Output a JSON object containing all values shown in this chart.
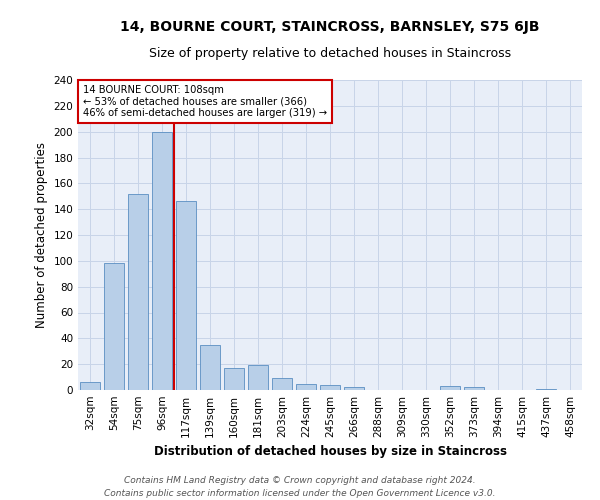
{
  "title": "14, BOURNE COURT, STAINCROSS, BARNSLEY, S75 6JB",
  "subtitle": "Size of property relative to detached houses in Staincross",
  "xlabel": "Distribution of detached houses by size in Staincross",
  "ylabel": "Number of detached properties",
  "categories": [
    "32sqm",
    "54sqm",
    "75sqm",
    "96sqm",
    "117sqm",
    "139sqm",
    "160sqm",
    "181sqm",
    "203sqm",
    "224sqm",
    "245sqm",
    "266sqm",
    "288sqm",
    "309sqm",
    "330sqm",
    "352sqm",
    "373sqm",
    "394sqm",
    "415sqm",
    "437sqm",
    "458sqm"
  ],
  "values": [
    6,
    98,
    152,
    200,
    146,
    35,
    17,
    19,
    9,
    5,
    4,
    2,
    0,
    0,
    0,
    3,
    2,
    0,
    0,
    1,
    0
  ],
  "bar_color": "#b8cfe8",
  "bar_edge_color": "#5a8fc2",
  "vline_x": 3.5,
  "annotation_line1": "14 BOURNE COURT: 108sqm",
  "annotation_line2": "← 53% of detached houses are smaller (366)",
  "annotation_line3": "46% of semi-detached houses are larger (319) →",
  "annotation_box_color": "#ffffff",
  "annotation_box_edge_color": "#cc0000",
  "vline_color": "#cc0000",
  "ylim": [
    0,
    240
  ],
  "yticks": [
    0,
    20,
    40,
    60,
    80,
    100,
    120,
    140,
    160,
    180,
    200,
    220,
    240
  ],
  "grid_color": "#c8d4e8",
  "background_color": "#e8eef8",
  "footer_line1": "Contains HM Land Registry data © Crown copyright and database right 2024.",
  "footer_line2": "Contains public sector information licensed under the Open Government Licence v3.0.",
  "title_fontsize": 10,
  "subtitle_fontsize": 9,
  "axis_label_fontsize": 8.5,
  "tick_fontsize": 7.5,
  "footer_fontsize": 6.5
}
